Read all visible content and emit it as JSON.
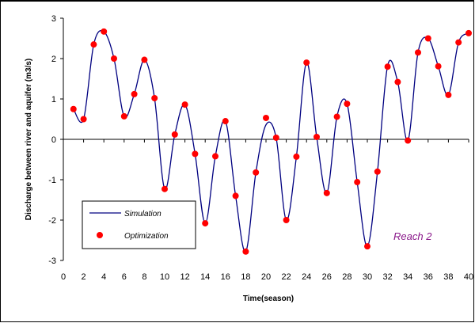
{
  "chart_data": {
    "type": "line",
    "xlabel": "Time(season)",
    "ylabel": "Discharge between river and aquifer (m3/s)",
    "xlim": [
      0,
      40
    ],
    "ylim": [
      -3,
      3
    ],
    "xticks": [
      0,
      2,
      4,
      6,
      8,
      10,
      12,
      14,
      16,
      18,
      20,
      22,
      24,
      26,
      28,
      30,
      32,
      34,
      36,
      38,
      40
    ],
    "yticks": [
      3,
      2,
      1,
      0,
      -1,
      -2,
      -3
    ],
    "grid": false,
    "legend_position": "bottom-left",
    "annotation": "Reach 2",
    "annotation_color": "#8b1a8b",
    "series": [
      {
        "name": "Simulation",
        "style": "line",
        "color": "#000080",
        "x": [
          1,
          2,
          3,
          4,
          5,
          6,
          7,
          8,
          9,
          10,
          11,
          12,
          13,
          14,
          15,
          16,
          17,
          18,
          19,
          20,
          21,
          22,
          23,
          24,
          25,
          26,
          27,
          28,
          29,
          30,
          31,
          32,
          33,
          34,
          35,
          36,
          37,
          38,
          39,
          40
        ],
        "y": [
          0.75,
          0.5,
          2.35,
          2.67,
          2.0,
          0.57,
          1.12,
          1.97,
          1.02,
          -1.23,
          0.12,
          0.86,
          -0.36,
          -2.08,
          -0.42,
          0.45,
          -1.4,
          -2.78,
          -0.82,
          0.36,
          0.04,
          -2.0,
          -0.43,
          1.9,
          0.06,
          -1.33,
          0.56,
          0.88,
          -1.06,
          -2.65,
          -0.8,
          1.82,
          1.42,
          -0.03,
          2.15,
          2.5,
          1.81,
          1.1,
          2.4,
          2.63
        ]
      },
      {
        "name": "Optimization",
        "style": "markers",
        "color": "#ff0000",
        "x": [
          1,
          2,
          3,
          4,
          5,
          6,
          7,
          8,
          9,
          10,
          11,
          12,
          13,
          14,
          15,
          16,
          17,
          18,
          19,
          20,
          21,
          22,
          23,
          24,
          25,
          26,
          27,
          28,
          29,
          30,
          31,
          32,
          33,
          34,
          35,
          36,
          37,
          38,
          39,
          40
        ],
        "y": [
          0.75,
          0.5,
          2.35,
          2.67,
          2.0,
          0.57,
          1.12,
          1.97,
          1.02,
          -1.23,
          0.12,
          0.86,
          -0.36,
          -2.08,
          -0.42,
          0.45,
          -1.4,
          -2.78,
          -0.82,
          0.53,
          0.04,
          -2.0,
          -0.43,
          1.9,
          0.06,
          -1.33,
          0.56,
          0.88,
          -1.06,
          -2.65,
          -0.8,
          1.8,
          1.42,
          -0.03,
          2.15,
          2.5,
          1.81,
          1.1,
          2.4,
          2.63
        ]
      }
    ]
  }
}
